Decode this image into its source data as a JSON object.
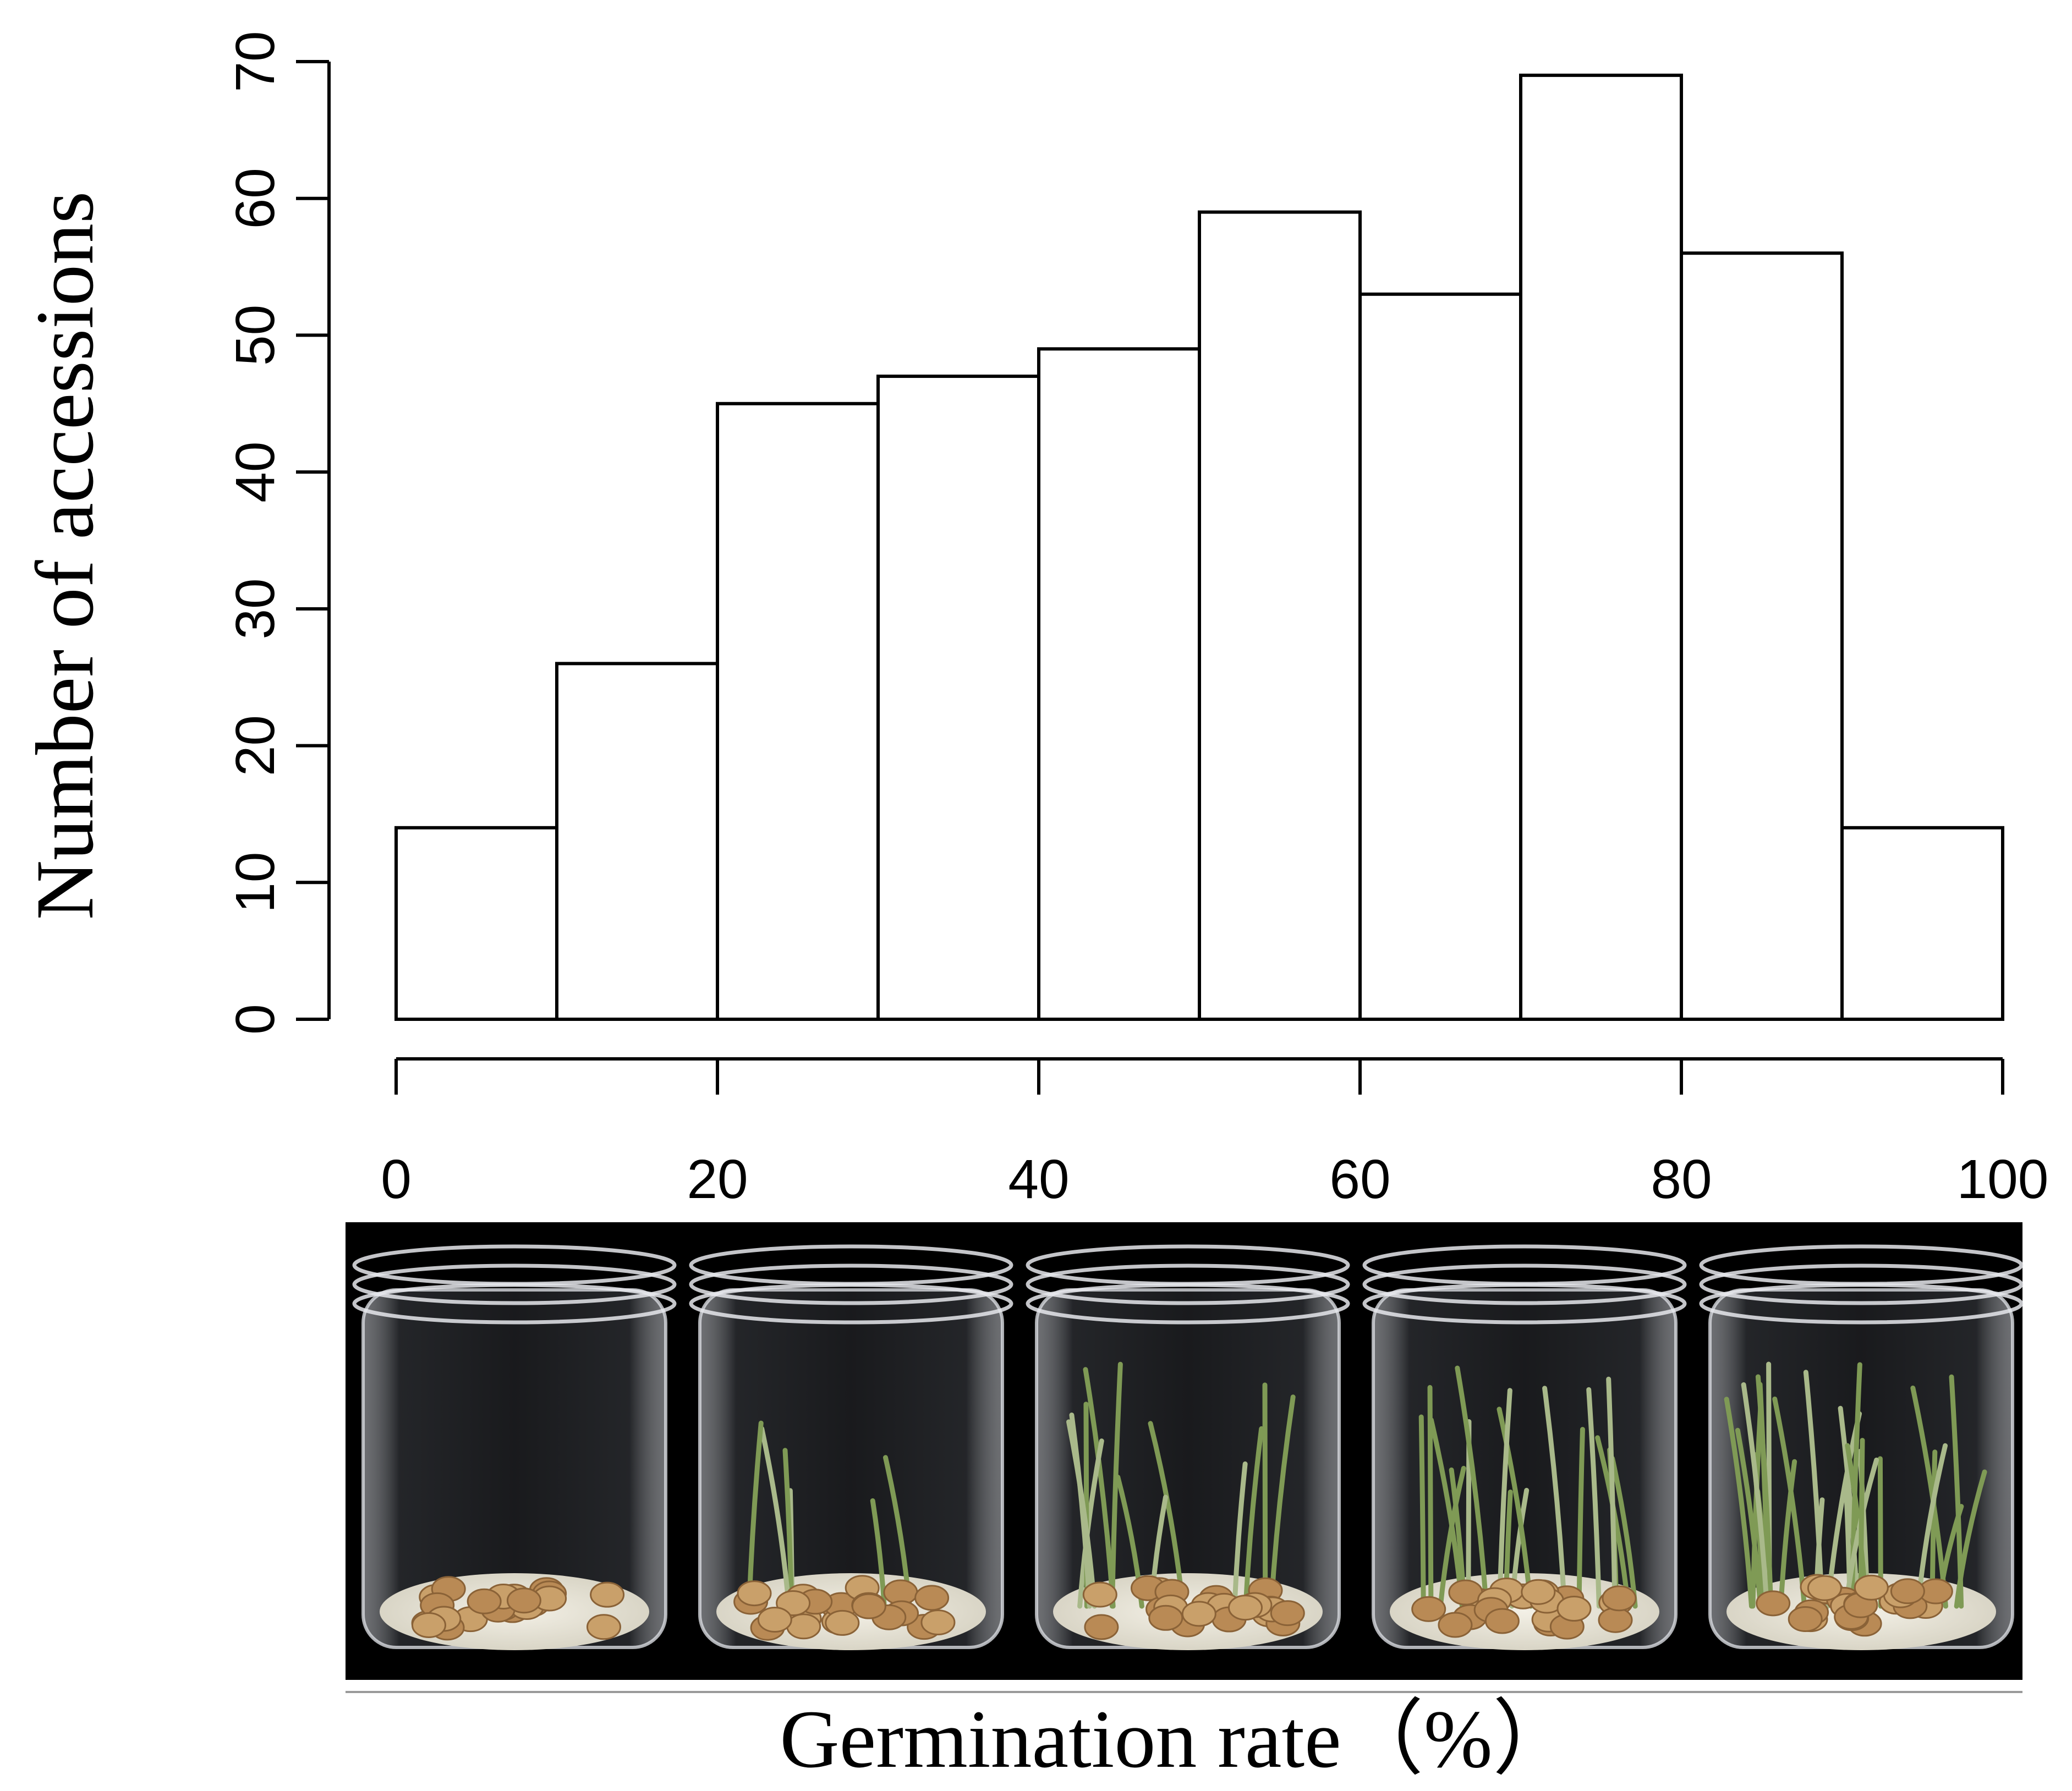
{
  "chart_data": {
    "type": "bar",
    "variant": "histogram",
    "bin_edges": [
      0,
      10,
      20,
      30,
      40,
      50,
      60,
      70,
      80,
      90,
      100
    ],
    "values": [
      14,
      26,
      45,
      47,
      49,
      59,
      53,
      69,
      56,
      14
    ],
    "xlabel": "Germination rate（%）",
    "ylabel": "Number of accessions",
    "x_ticks": [
      "0",
      "20",
      "40",
      "60",
      "80",
      "100"
    ],
    "y_ticks": [
      "0",
      "10",
      "20",
      "30",
      "40",
      "50",
      "60",
      "70"
    ],
    "xlim": [
      0,
      100
    ],
    "ylim": [
      0,
      70
    ],
    "grid": false,
    "legend": "none",
    "bar_fill": "#ffffff",
    "bar_stroke": "#000000"
  },
  "photo": {
    "background": "#000000",
    "jars": [
      {
        "germination": "none"
      },
      {
        "germination": "low"
      },
      {
        "germination": "medium"
      },
      {
        "germination": "high"
      },
      {
        "germination": "very-high"
      }
    ]
  }
}
